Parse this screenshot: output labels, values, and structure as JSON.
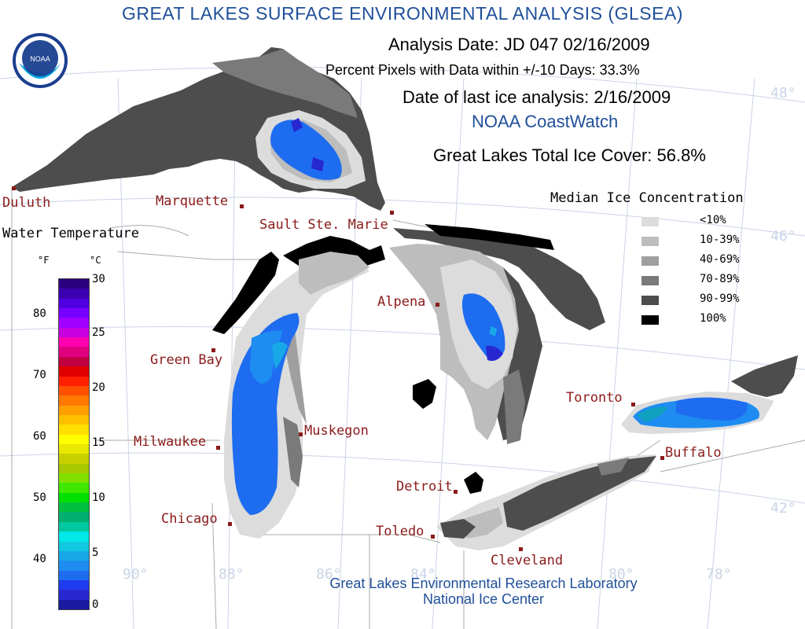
{
  "header": {
    "title": "GREAT LAKES SURFACE ENVIRONMENTAL ANALYSIS (GLSEA)",
    "analysis_date": "Analysis Date:  JD 047 02/16/2009",
    "percent_pixels": "Percent Pixels with Data within +/-10 Days:  33.3%",
    "last_ice": "Date of last ice analysis: 2/16/2009",
    "coastwatch": "NOAA CoastWatch",
    "total_ice": "Great Lakes Total Ice Cover:  56.8%"
  },
  "logo": {
    "text": "NOAA"
  },
  "cities": [
    {
      "name": "Duluth"
    },
    {
      "name": "Marquette"
    },
    {
      "name": "Sault Ste. Marie"
    },
    {
      "name": "Alpena"
    },
    {
      "name": "Green Bay"
    },
    {
      "name": "Muskegon"
    },
    {
      "name": "Milwaukee"
    },
    {
      "name": "Chicago"
    },
    {
      "name": "Detroit"
    },
    {
      "name": "Toledo"
    },
    {
      "name": "Cleveland"
    },
    {
      "name": "Toronto"
    },
    {
      "name": "Buffalo"
    }
  ],
  "grid_labels": {
    "lat": [
      "48°",
      "46°",
      "42°"
    ],
    "lon": [
      "90°",
      "88°",
      "86°",
      "84°",
      "80°",
      "78°"
    ]
  },
  "ice_legend": {
    "title": "Median Ice Concentration",
    "items": [
      {
        "label": "<10%",
        "color": "#dcdcdc"
      },
      {
        "label": "10-39%",
        "color": "#bdbdbd"
      },
      {
        "label": "40-69%",
        "color": "#9f9f9f"
      },
      {
        "label": "70-89%",
        "color": "#7a7a7a"
      },
      {
        "label": "90-99%",
        "color": "#4d4d4d"
      },
      {
        "label": "100%",
        "color": "#000000"
      }
    ]
  },
  "water_temp": {
    "title": "Water Temperature",
    "unit_f": "°F",
    "unit_c": "°C",
    "f_ticks": [
      "80",
      "70",
      "60",
      "50",
      "40"
    ],
    "c_ticks": [
      "30",
      "25",
      "20",
      "15",
      "10",
      "5",
      "0"
    ],
    "colors": [
      "#1a1aa0",
      "#2828d2",
      "#1e3cf0",
      "#1e6cf0",
      "#1e8cf0",
      "#18a8e8",
      "#10c8e0",
      "#00e8e8",
      "#00c8a0",
      "#00b070",
      "#00c040",
      "#00e000",
      "#40e800",
      "#80e000",
      "#a8c800",
      "#c8d000",
      "#e8e800",
      "#ffff00",
      "#ffe000",
      "#ffc000",
      "#ffa000",
      "#ff7800",
      "#ff5000",
      "#ff2000",
      "#e00000",
      "#c00040",
      "#e00080",
      "#ff00b0",
      "#c800e0",
      "#a000ff",
      "#7800ff",
      "#5000e0",
      "#3c00b0",
      "#2a0080"
    ]
  },
  "credits": {
    "line1": "Great Lakes Environmental Research Laboratory",
    "line2": "National Ice Center"
  }
}
